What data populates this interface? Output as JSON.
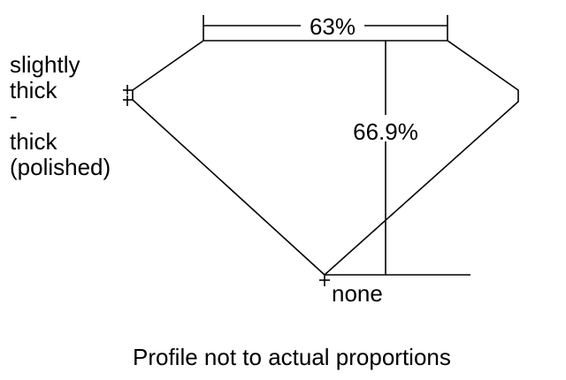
{
  "girdle_label": [
    "slightly",
    "thick",
    "-",
    "thick",
    "(polished)"
  ],
  "table_percent": "63%",
  "depth_percent": "66.9%",
  "culet_label": "none",
  "footer_note": "Profile not to actual proportions"
}
